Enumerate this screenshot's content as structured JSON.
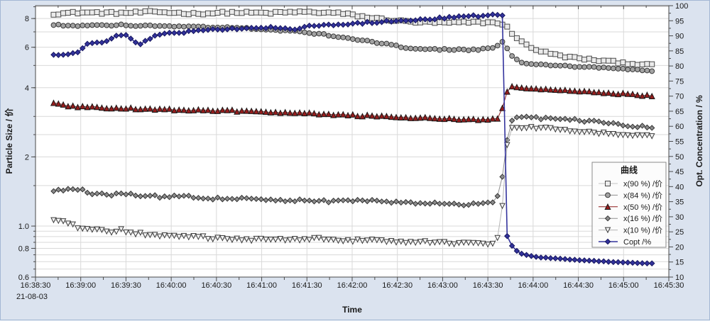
{
  "window": {
    "bg": "#dbe3ef",
    "border": "#a3b7d4",
    "plot_bg": "#ffffff",
    "grid_color": "#d9d9d9",
    "frame_color": "#4a4a4a"
  },
  "chart_data": {
    "type": "line",
    "title": "",
    "x_axis": {
      "label": "Time",
      "date_label": "21-08-03",
      "unit": "seconds after 16:38:30",
      "t_min": 0,
      "t_max": 420,
      "major_step_s": 30,
      "minor_step_s": 15,
      "tick_labels": [
        "16:38:30",
        "16:39:00",
        "16:39:30",
        "16:40:00",
        "16:40:30",
        "16:41:00",
        "16:41:30",
        "16:42:00",
        "16:42:30",
        "16:43:00",
        "16:43:30",
        "16:44:00",
        "16:44:30",
        "16:45:00",
        "16:45:30"
      ]
    },
    "y_left": {
      "label": "Particle Size / 价",
      "scale": "log",
      "min": 0.6,
      "max": 9.1,
      "ticks": [
        {
          "v": 8,
          "label": "8"
        },
        {
          "v": 6,
          "label": "6"
        },
        {
          "v": 4,
          "label": "4"
        },
        {
          "v": 2,
          "label": "2"
        },
        {
          "v": 1,
          "label": "1.0"
        },
        {
          "v": 0.8,
          "label": "0.8"
        },
        {
          "v": 0.6,
          "label": "0.6"
        }
      ],
      "grid_values": [
        0.6,
        0.65,
        0.7,
        0.75,
        0.8,
        0.85,
        0.9,
        0.95,
        1,
        1.5,
        2,
        2.5,
        3,
        4,
        5,
        6,
        7,
        8,
        9
      ]
    },
    "y_right": {
      "label": "Opt. Concentration / %",
      "scale": "linear",
      "min": 10,
      "max": 100,
      "major_step": 5,
      "minor_step": 2.5,
      "tick_labels": [
        "10",
        "15",
        "20",
        "25",
        "30",
        "35",
        "40",
        "45",
        "50",
        "55",
        "60",
        "65",
        "70",
        "75",
        "80",
        "85",
        "90",
        "95",
        "100"
      ]
    },
    "legend": {
      "title": "曲线",
      "entries": [
        "x(90 %) /价",
        "x(84 %) /价",
        "x(50 %) /价",
        "x(16 %) /价",
        "x(10 %) /价",
        "Copt /%"
      ]
    },
    "sampling": {
      "t_start": 12,
      "t_end": 410,
      "step_s": 3.2
    },
    "series": [
      {
        "name": "x(90 %) /价",
        "axis": "left",
        "marker": "square",
        "size": 7,
        "fill": "#ebebeb",
        "stroke": "#4a4a4a",
        "line_color": "#c3c3c3",
        "line_width": 1,
        "noise": 0.011,
        "points": [
          [
            12,
            8.4
          ],
          [
            30,
            8.5
          ],
          [
            55,
            8.45
          ],
          [
            80,
            8.55
          ],
          [
            105,
            8.4
          ],
          [
            130,
            8.5
          ],
          [
            155,
            8.45
          ],
          [
            175,
            8.55
          ],
          [
            189,
            8.5
          ],
          [
            200,
            8.45
          ],
          [
            210,
            8.3
          ],
          [
            220,
            8.1
          ],
          [
            230,
            7.95
          ],
          [
            242,
            7.8
          ],
          [
            252,
            7.72
          ],
          [
            270,
            7.66
          ],
          [
            290,
            7.7
          ],
          [
            307,
            7.68
          ],
          [
            313,
            7.3
          ],
          [
            317,
            6.8
          ],
          [
            322,
            6.35
          ],
          [
            328,
            6.0
          ],
          [
            336,
            5.75
          ],
          [
            348,
            5.5
          ],
          [
            362,
            5.35
          ],
          [
            378,
            5.22
          ],
          [
            395,
            5.1
          ],
          [
            410,
            5.0
          ]
        ]
      },
      {
        "name": "x(84 %) /价",
        "axis": "left",
        "marker": "circle",
        "size": 6.8,
        "fill": "#a3a3a3",
        "stroke": "#383838",
        "line_color": "#8f8f8f",
        "line_width": 1,
        "noise": 0.007,
        "points": [
          [
            12,
            7.5
          ],
          [
            30,
            7.45
          ],
          [
            55,
            7.5
          ],
          [
            80,
            7.42
          ],
          [
            105,
            7.38
          ],
          [
            130,
            7.3
          ],
          [
            155,
            7.18
          ],
          [
            170,
            7.05
          ],
          [
            189,
            6.85
          ],
          [
            205,
            6.6
          ],
          [
            220,
            6.4
          ],
          [
            235,
            6.15
          ],
          [
            248,
            5.95
          ],
          [
            260,
            5.88
          ],
          [
            275,
            5.86
          ],
          [
            290,
            5.85
          ],
          [
            300,
            5.9
          ],
          [
            306,
            6.05
          ],
          [
            309,
            6.35
          ],
          [
            311,
            6.2
          ],
          [
            314,
            5.8
          ],
          [
            317,
            5.4
          ],
          [
            321,
            5.2
          ],
          [
            328,
            5.08
          ],
          [
            340,
            5.0
          ],
          [
            355,
            4.95
          ],
          [
            375,
            4.88
          ],
          [
            395,
            4.8
          ],
          [
            410,
            4.74
          ]
        ]
      },
      {
        "name": "x(50 %) /价",
        "axis": "left",
        "marker": "triangle-up",
        "size": 7.5,
        "fill": "#981c1c",
        "stroke": "#1a1a1a",
        "line_color": "#8d1a1a",
        "line_width": 1,
        "noise": 0.008,
        "points": [
          [
            12,
            3.42
          ],
          [
            25,
            3.32
          ],
          [
            45,
            3.28
          ],
          [
            70,
            3.24
          ],
          [
            100,
            3.2
          ],
          [
            130,
            3.18
          ],
          [
            160,
            3.12
          ],
          [
            190,
            3.08
          ],
          [
            220,
            3.02
          ],
          [
            250,
            2.97
          ],
          [
            275,
            2.93
          ],
          [
            295,
            2.9
          ],
          [
            305,
            2.92
          ],
          [
            308,
            3.0
          ],
          [
            310,
            3.35
          ],
          [
            312,
            3.75
          ],
          [
            314,
            4.0
          ],
          [
            318,
            4.05
          ],
          [
            325,
            3.98
          ],
          [
            340,
            3.92
          ],
          [
            360,
            3.86
          ],
          [
            380,
            3.8
          ],
          [
            400,
            3.72
          ],
          [
            410,
            3.68
          ]
        ]
      },
      {
        "name": "x(16 %) /价",
        "axis": "left",
        "marker": "diamond",
        "size": 7,
        "fill": "#8c8c8c",
        "stroke": "#333333",
        "line_color": "#909090",
        "line_width": 1,
        "noise": 0.012,
        "points": [
          [
            12,
            1.43
          ],
          [
            20,
            1.44
          ],
          [
            27,
            1.46
          ],
          [
            35,
            1.4
          ],
          [
            48,
            1.36
          ],
          [
            58,
            1.39
          ],
          [
            70,
            1.36
          ],
          [
            85,
            1.34
          ],
          [
            100,
            1.35
          ],
          [
            115,
            1.32
          ],
          [
            130,
            1.31
          ],
          [
            145,
            1.32
          ],
          [
            160,
            1.3
          ],
          [
            180,
            1.29
          ],
          [
            200,
            1.28
          ],
          [
            225,
            1.29
          ],
          [
            250,
            1.26
          ],
          [
            270,
            1.25
          ],
          [
            285,
            1.24
          ],
          [
            295,
            1.25
          ],
          [
            305,
            1.27
          ],
          [
            309,
            1.5
          ],
          [
            312,
            2.2
          ],
          [
            315,
            2.8
          ],
          [
            318,
            2.95
          ],
          [
            325,
            2.97
          ],
          [
            340,
            2.93
          ],
          [
            355,
            2.9
          ],
          [
            370,
            2.85
          ],
          [
            385,
            2.78
          ],
          [
            400,
            2.72
          ],
          [
            410,
            2.67
          ]
        ]
      },
      {
        "name": "x(10 %) /价",
        "axis": "left",
        "marker": "triangle-down",
        "size": 7,
        "fill": "#f7f7f7",
        "stroke": "#3a3a3a",
        "line_color": "#b5b5b5",
        "line_width": 1,
        "noise": 0.013,
        "points": [
          [
            12,
            1.06
          ],
          [
            20,
            1.04
          ],
          [
            28,
            0.99
          ],
          [
            40,
            0.97
          ],
          [
            52,
            0.94
          ],
          [
            55,
            0.97
          ],
          [
            65,
            0.93
          ],
          [
            80,
            0.91
          ],
          [
            95,
            0.9
          ],
          [
            110,
            0.895
          ],
          [
            125,
            0.88
          ],
          [
            140,
            0.875
          ],
          [
            155,
            0.87
          ],
          [
            170,
            0.875
          ],
          [
            185,
            0.88
          ],
          [
            200,
            0.87
          ],
          [
            215,
            0.865
          ],
          [
            230,
            0.86
          ],
          [
            245,
            0.855
          ],
          [
            260,
            0.85
          ],
          [
            275,
            0.845
          ],
          [
            290,
            0.835
          ],
          [
            300,
            0.84
          ],
          [
            306,
            0.85
          ],
          [
            309,
            1.05
          ],
          [
            311,
            1.6
          ],
          [
            313,
            2.3
          ],
          [
            316,
            2.65
          ],
          [
            320,
            2.7
          ],
          [
            330,
            2.68
          ],
          [
            345,
            2.63
          ],
          [
            360,
            2.58
          ],
          [
            375,
            2.55
          ],
          [
            390,
            2.5
          ],
          [
            410,
            2.45
          ]
        ]
      },
      {
        "name": "Copt /%",
        "axis": "right",
        "marker": "diamond",
        "size": 7.2,
        "fill": "#32329b",
        "stroke": "#16165e",
        "line_color": "#34349e",
        "line_width": 1.6,
        "noise": 0.003,
        "points": [
          [
            12,
            83.5
          ],
          [
            18,
            83.8
          ],
          [
            24,
            84.3
          ],
          [
            30,
            85.0
          ],
          [
            33,
            87.5
          ],
          [
            40,
            87.8
          ],
          [
            48,
            88.0
          ],
          [
            52,
            90.0
          ],
          [
            58,
            90.5
          ],
          [
            64,
            89.0
          ],
          [
            69,
            86.8
          ],
          [
            74,
            88.5
          ],
          [
            80,
            90.3
          ],
          [
            90,
            90.8
          ],
          [
            100,
            91.3
          ],
          [
            115,
            91.9
          ],
          [
            130,
            92.3
          ],
          [
            145,
            92.6
          ],
          [
            160,
            92.9
          ],
          [
            172,
            92.2
          ],
          [
            180,
            93.2
          ],
          [
            195,
            93.5
          ],
          [
            210,
            94.0
          ],
          [
            225,
            94.5
          ],
          [
            240,
            94.9
          ],
          [
            255,
            95.4
          ],
          [
            270,
            95.9
          ],
          [
            285,
            96.4
          ],
          [
            300,
            96.8
          ],
          [
            308,
            97.0
          ],
          [
            310.5,
            97.0
          ],
          [
            312.5,
            24.0
          ],
          [
            315,
            21.0
          ],
          [
            318,
            19.0
          ],
          [
            322,
            17.8
          ],
          [
            328,
            17.0
          ],
          [
            335,
            16.5
          ],
          [
            345,
            16.2
          ],
          [
            358,
            15.7
          ],
          [
            372,
            15.3
          ],
          [
            388,
            14.9
          ],
          [
            402,
            14.6
          ],
          [
            410,
            14.5
          ]
        ]
      }
    ]
  }
}
